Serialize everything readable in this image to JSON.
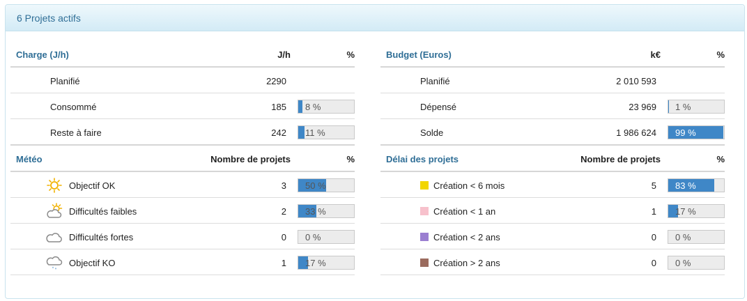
{
  "panel": {
    "title": "6 Projets actifs"
  },
  "charge": {
    "title": "Charge (J/h)",
    "col1": "J/h",
    "col2": "%",
    "rows": [
      {
        "label": "Planifié",
        "value": "2290"
      },
      {
        "label": "Consommé",
        "value": "185",
        "pct": "8 %",
        "fraction": 0.08
      },
      {
        "label": "Reste à faire",
        "value": "242",
        "pct": "11 %",
        "fraction": 0.11
      }
    ]
  },
  "budget": {
    "title": "Budget (Euros)",
    "col1": "k€",
    "col2": "%",
    "rows": [
      {
        "label": "Planifié",
        "value": "2 010 593"
      },
      {
        "label": "Dépensé",
        "value": "23 969",
        "pct": "1 %",
        "fraction": 0.01
      },
      {
        "label": "Solde",
        "value": "1 986 624",
        "pct": "99 %",
        "fraction": 0.99
      }
    ]
  },
  "meteo": {
    "title": "Météo",
    "col1": "Nombre de projets",
    "col2": "%",
    "rows": [
      {
        "icon": "sun-icon",
        "label": "Objectif OK",
        "value": "3",
        "pct": "50 %",
        "fraction": 0.5
      },
      {
        "icon": "sun-cloud-icon",
        "label": "Difficultés faibles",
        "value": "2",
        "pct": "33 %",
        "fraction": 0.33
      },
      {
        "icon": "cloud-icon",
        "label": "Difficultés fortes",
        "value": "0",
        "pct": "0 %",
        "fraction": 0
      },
      {
        "icon": "rain-cloud-icon",
        "label": "Objectif KO",
        "value": "1",
        "pct": "17 %",
        "fraction": 0.17
      }
    ]
  },
  "delai": {
    "title": "Délai des projets",
    "col1": "Nombre de projets",
    "col2": "%",
    "rows": [
      {
        "color": "#f2d600",
        "label": "Création < 6 mois",
        "value": "5",
        "pct": "83 %",
        "fraction": 0.83
      },
      {
        "color": "#f7c1cc",
        "label": "Création < 1 an",
        "value": "1",
        "pct": "17 %",
        "fraction": 0.17
      },
      {
        "color": "#9b7fd1",
        "label": "Création < 2 ans",
        "value": "0",
        "pct": "0 %",
        "fraction": 0
      },
      {
        "color": "#9b6b5e",
        "label": "Création > 2 ans",
        "value": "0",
        "pct": "0 %",
        "fraction": 0
      }
    ]
  }
}
